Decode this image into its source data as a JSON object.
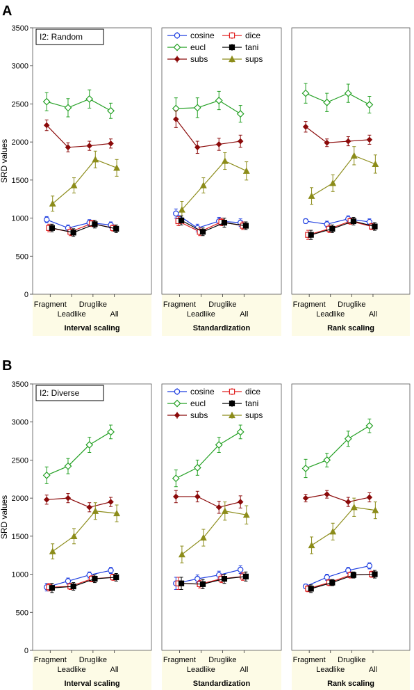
{
  "colors": {
    "cosine": "#1f3fe0",
    "dice": "#e02020",
    "eucl": "#23a023",
    "tani": "#000000",
    "subs": "#8b0a0a",
    "sups": "#8c8c1a",
    "strip": "#fdfbe6"
  },
  "figure": {
    "ylabel": "SRD values",
    "yticks": [
      0,
      500,
      1000,
      1500,
      2000,
      2500,
      3000,
      3500
    ],
    "categories_top": [
      "Fragment",
      "Druglike"
    ],
    "categories_bottom": [
      "Leadlike",
      "All"
    ],
    "scalings": [
      "Interval scaling",
      "Standardization",
      "Rank scaling"
    ],
    "legend": [
      "cosine",
      "dice",
      "eucl",
      "tani",
      "subs",
      "sups"
    ]
  },
  "chart_data": [
    {
      "type": "line",
      "panel_label": "A",
      "annotation": "I2: Random",
      "ylim": [
        0,
        3500
      ],
      "categories": [
        "Fragment",
        "Leadlike",
        "Druglike",
        "All"
      ],
      "subplots": [
        {
          "xlabel": "Interval scaling",
          "series": [
            {
              "name": "cosine",
              "values": [
                980,
                870,
                940,
                910
              ],
              "err": [
                40,
                40,
                40,
                40
              ]
            },
            {
              "name": "dice",
              "values": [
                870,
                820,
                930,
                870
              ],
              "err": [
                50,
                50,
                40,
                40
              ]
            },
            {
              "name": "eucl",
              "values": [
                2530,
                2450,
                2565,
                2410
              ],
              "err": [
                120,
                120,
                120,
                100
              ]
            },
            {
              "name": "tani",
              "values": [
                870,
                810,
                920,
                860
              ],
              "err": [
                50,
                50,
                50,
                50
              ]
            },
            {
              "name": "subs",
              "values": [
                2220,
                1930,
                1950,
                1980
              ],
              "err": [
                70,
                60,
                60,
                60
              ]
            },
            {
              "name": "sups",
              "values": [
                1190,
                1430,
                1770,
                1660
              ],
              "err": [
                100,
                100,
                110,
                110
              ]
            }
          ]
        },
        {
          "xlabel": "Standardization",
          "series": [
            {
              "name": "cosine",
              "values": [
                1060,
                870,
                960,
                940
              ],
              "err": [
                60,
                50,
                50,
                50
              ]
            },
            {
              "name": "dice",
              "values": [
                960,
                820,
                950,
                900
              ],
              "err": [
                60,
                50,
                50,
                50
              ]
            },
            {
              "name": "eucl",
              "values": [
                2440,
                2450,
                2545,
                2370
              ],
              "err": [
                140,
                130,
                120,
                110
              ]
            },
            {
              "name": "tani",
              "values": [
                970,
                820,
                940,
                900
              ],
              "err": [
                60,
                50,
                60,
                50
              ]
            },
            {
              "name": "subs",
              "values": [
                2300,
                1930,
                1970,
                2010
              ],
              "err": [
                110,
                80,
                80,
                80
              ]
            },
            {
              "name": "sups",
              "values": [
                1110,
                1430,
                1750,
                1620
              ],
              "err": [
                110,
                100,
                110,
                120
              ]
            }
          ]
        },
        {
          "xlabel": "Rank scaling",
          "series": [
            {
              "name": "cosine",
              "values": [
                960,
                920,
                990,
                950
              ],
              "err": [
                30,
                40,
                40,
                40
              ]
            },
            {
              "name": "dice",
              "values": [
                780,
                860,
                960,
                890
              ],
              "err": [
                60,
                50,
                40,
                40
              ]
            },
            {
              "name": "eucl",
              "values": [
                2640,
                2520,
                2640,
                2490
              ],
              "err": [
                130,
                120,
                120,
                110
              ]
            },
            {
              "name": "tani",
              "values": [
                780,
                860,
                960,
                890
              ],
              "err": [
                60,
                50,
                50,
                50
              ]
            },
            {
              "name": "subs",
              "values": [
                2200,
                1990,
                2010,
                2030
              ],
              "err": [
                70,
                50,
                60,
                60
              ]
            },
            {
              "name": "sups",
              "values": [
                1290,
                1460,
                1820,
                1710
              ],
              "err": [
                110,
                110,
                120,
                120
              ]
            }
          ]
        }
      ]
    },
    {
      "type": "line",
      "panel_label": "B",
      "annotation": "I2: Diverse",
      "ylim": [
        0,
        3500
      ],
      "categories": [
        "Fragment",
        "Leadlike",
        "Druglike",
        "All"
      ],
      "subplots": [
        {
          "xlabel": "Interval scaling",
          "series": [
            {
              "name": "cosine",
              "values": [
                830,
                910,
                990,
                1050
              ],
              "err": [
                50,
                40,
                40,
                40
              ]
            },
            {
              "name": "dice",
              "values": [
                830,
                840,
                940,
                960
              ],
              "err": [
                50,
                40,
                40,
                40
              ]
            },
            {
              "name": "eucl",
              "values": [
                2300,
                2420,
                2700,
                2870
              ],
              "err": [
                110,
                100,
                100,
                90
              ]
            },
            {
              "name": "tani",
              "values": [
                820,
                840,
                940,
                960
              ],
              "err": [
                60,
                50,
                50,
                50
              ]
            },
            {
              "name": "subs",
              "values": [
                1980,
                2000,
                1880,
                1950
              ],
              "err": [
                60,
                60,
                60,
                60
              ]
            },
            {
              "name": "sups",
              "values": [
                1300,
                1500,
                1830,
                1800
              ],
              "err": [
                100,
                100,
                110,
                110
              ]
            }
          ]
        },
        {
          "xlabel": "Standardization",
          "series": [
            {
              "name": "cosine",
              "values": [
                880,
                940,
                990,
                1060
              ],
              "err": [
                80,
                50,
                50,
                50
              ]
            },
            {
              "name": "dice",
              "values": [
                880,
                870,
                940,
                970
              ],
              "err": [
                80,
                50,
                50,
                50
              ]
            },
            {
              "name": "eucl",
              "values": [
                2260,
                2400,
                2700,
                2870
              ],
              "err": [
                110,
                100,
                100,
                90
              ]
            },
            {
              "name": "tani",
              "values": [
                880,
                870,
                940,
                970
              ],
              "err": [
                80,
                60,
                60,
                60
              ]
            },
            {
              "name": "subs",
              "values": [
                2020,
                2020,
                1880,
                1950
              ],
              "err": [
                80,
                70,
                80,
                80
              ]
            },
            {
              "name": "sups",
              "values": [
                1260,
                1480,
                1830,
                1780
              ],
              "err": [
                110,
                110,
                120,
                120
              ]
            }
          ]
        },
        {
          "xlabel": "Rank scaling",
          "series": [
            {
              "name": "cosine",
              "values": [
                840,
                960,
                1050,
                1110
              ],
              "err": [
                30,
                40,
                40,
                40
              ]
            },
            {
              "name": "dice",
              "values": [
                810,
                890,
                990,
                1000
              ],
              "err": [
                40,
                40,
                40,
                40
              ]
            },
            {
              "name": "eucl",
              "values": [
                2390,
                2500,
                2780,
                2950
              ],
              "err": [
                120,
                90,
                100,
                90
              ]
            },
            {
              "name": "tani",
              "values": [
                810,
                890,
                990,
                1000
              ],
              "err": [
                50,
                40,
                40,
                50
              ]
            },
            {
              "name": "subs",
              "values": [
                2000,
                2050,
                1950,
                2010
              ],
              "err": [
                50,
                50,
                60,
                60
              ]
            },
            {
              "name": "sups",
              "values": [
                1380,
                1560,
                1880,
                1840
              ],
              "err": [
                110,
                110,
                120,
                110
              ]
            }
          ]
        }
      ]
    }
  ]
}
